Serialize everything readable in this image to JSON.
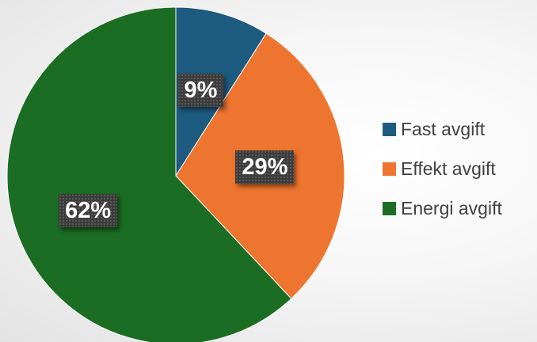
{
  "chart_data": {
    "type": "pie",
    "categories": [
      "Fast avgift",
      "Effekt avgift",
      "Energi avgift"
    ],
    "values": [
      9,
      29,
      62
    ],
    "data_labels": [
      "9%",
      "29%",
      "62%"
    ],
    "colors": [
      "#1d5b80",
      "#ee7530",
      "#1b6d24"
    ],
    "title": "",
    "legend_position": "right",
    "start_angle": "12 o'clock",
    "direction": "clockwise"
  }
}
